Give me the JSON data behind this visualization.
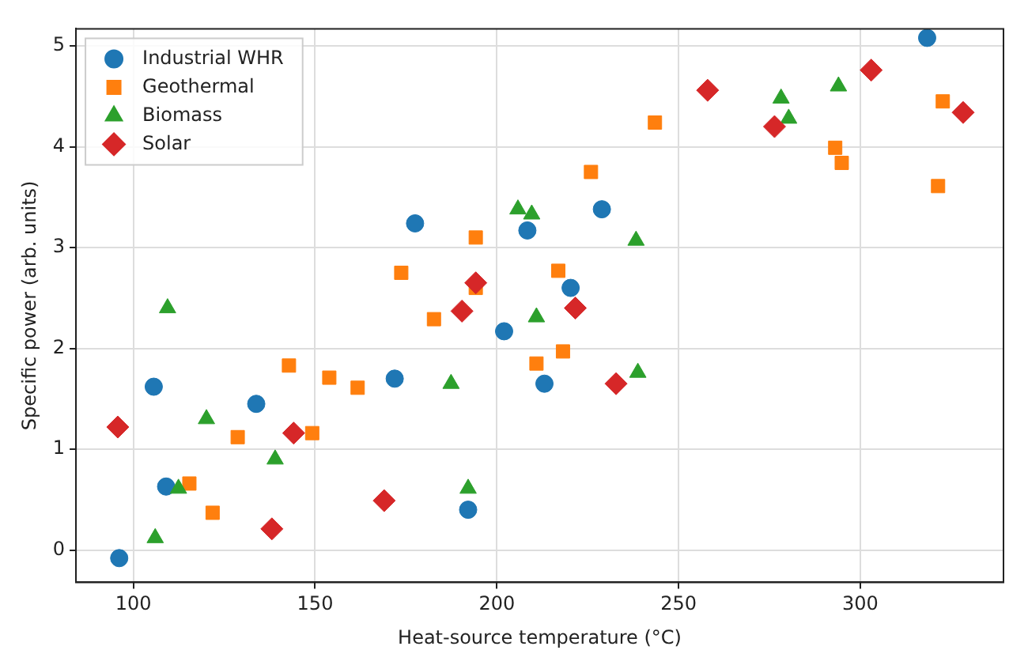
{
  "chart_data": {
    "type": "scatter",
    "xlabel": "Heat-source temperature (°C)",
    "ylabel": "Specific power (arb. units)",
    "xlim": [
      84.2,
      339.4
    ],
    "ylim": [
      -0.32,
      5.17
    ],
    "xticks": [
      100,
      150,
      200,
      250,
      300
    ],
    "yticks": [
      0,
      1,
      2,
      3,
      4,
      5
    ],
    "grid": true,
    "legend": "top left",
    "series": [
      {
        "name": "Industrial WHR",
        "color": "#1f77b4",
        "marker": "circle",
        "x": [
          96.1,
          105.6,
          109.0,
          133.8,
          171.9,
          177.5,
          192.1,
          202.0,
          208.4,
          213.1,
          220.3,
          228.9,
          318.4
        ],
        "values": [
          -0.08,
          1.62,
          0.63,
          1.45,
          1.7,
          3.24,
          0.4,
          2.17,
          3.17,
          1.65,
          2.6,
          3.38,
          5.08
        ]
      },
      {
        "name": "Geothermal",
        "color": "#ff7f0e",
        "marker": "square",
        "x": [
          115.4,
          121.8,
          128.7,
          142.8,
          149.2,
          153.9,
          161.7,
          173.7,
          182.7,
          194.2,
          194.2,
          210.9,
          216.9,
          218.2,
          225.9,
          243.5,
          293.1,
          294.9,
          321.4,
          322.7
        ],
        "values": [
          0.66,
          0.37,
          1.12,
          1.83,
          1.16,
          1.71,
          1.61,
          2.75,
          2.29,
          3.1,
          2.6,
          1.85,
          2.77,
          1.97,
          3.75,
          4.24,
          3.99,
          3.84,
          3.61,
          4.45
        ]
      },
      {
        "name": "Biomass",
        "color": "#2ca02c",
        "marker": "triangle",
        "x": [
          106.0,
          109.4,
          112.4,
          120.1,
          139.0,
          187.4,
          192.1,
          205.8,
          209.6,
          210.9,
          238.3,
          238.8,
          278.2,
          280.3,
          294.0
        ],
        "values": [
          0.12,
          2.4,
          0.61,
          1.3,
          0.9,
          1.65,
          0.61,
          3.38,
          3.33,
          2.31,
          3.07,
          1.76,
          4.48,
          4.28,
          4.6
        ]
      },
      {
        "name": "Solar",
        "color": "#d62728",
        "marker": "diamond",
        "x": [
          95.7,
          138.1,
          144.1,
          169.0,
          190.4,
          194.2,
          221.6,
          232.8,
          258.0,
          276.4,
          303.0,
          328.3
        ],
        "values": [
          1.22,
          0.21,
          1.16,
          0.49,
          2.37,
          2.65,
          2.4,
          1.65,
          4.56,
          4.2,
          4.76,
          4.34
        ]
      }
    ]
  }
}
